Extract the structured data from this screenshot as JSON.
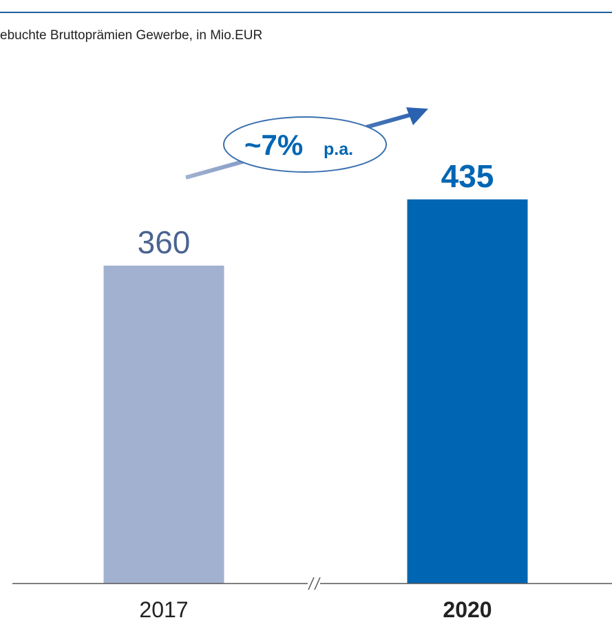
{
  "chart_data": {
    "type": "bar",
    "subtitle": "ebuchte Bruttoprämien Gewerbe, in Mio.EUR",
    "categories": [
      "2017",
      "2020"
    ],
    "values": [
      360,
      435
    ],
    "colors": [
      "#a2b1cf",
      "#0066b3"
    ],
    "ylim": [
      0,
      600
    ],
    "annotation": {
      "text": "~7%",
      "unit": "p.a."
    }
  }
}
